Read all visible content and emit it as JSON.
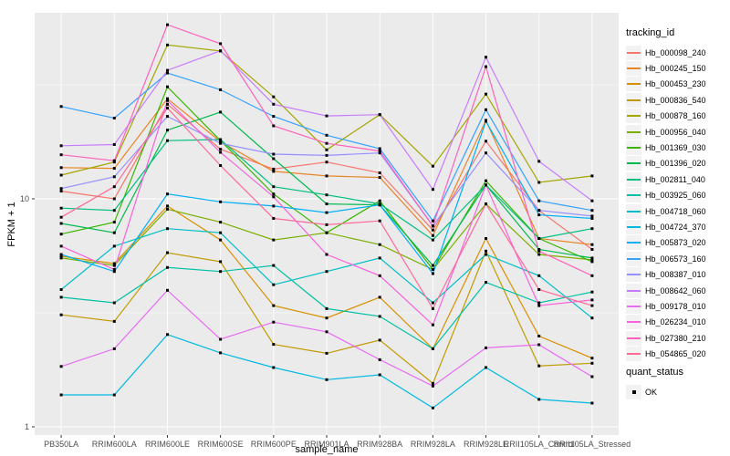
{
  "figure": {
    "xlabel": "sample_name",
    "ylabel": "FPKM + 1",
    "legend_title": "tracking_id",
    "quant_title": "quant_status",
    "quant_ok_label": "OK"
  },
  "chart_data": {
    "type": "line",
    "title": "",
    "xlabel": "sample_name",
    "ylabel": "FPKM + 1",
    "y_scale": "log10",
    "y_ticks": [
      1,
      10
    ],
    "y_tick_labels": [
      "1",
      "10"
    ],
    "y_minor_ticks": [
      3.162,
      31.62
    ],
    "ylim": [
      0.92,
      65
    ],
    "grid": true,
    "legend_position": "right",
    "legend_title": "tracking_id",
    "quant_status_legend": {
      "title": "quant_status",
      "items": [
        {
          "label": "OK",
          "marker": "black-square"
        }
      ]
    },
    "marker": {
      "shape": "square",
      "color": "#000000",
      "size": 3
    },
    "colors": {
      "panel_bg": "#EBEBEB",
      "grid": "#FFFFFF",
      "axis_text": "#4D4D4D",
      "text": "#000000",
      "legend_key_bg": "#F2F2F2"
    },
    "categories": [
      "PB350LA",
      "RRIM600LA",
      "RRIM600LE",
      "RRIM600SE",
      "RRIM600PE",
      "RRIM901LA",
      "RRIM928BA",
      "RRIM928LA",
      "RRIM928LE",
      "RRII105LA_Control",
      "RRII105LA_Stressed"
    ],
    "series": [
      {
        "name": "Hb_000098_240",
        "color": "#F8766D",
        "values": [
          10.8,
          10.0,
          26.0,
          16.5,
          13.5,
          14.5,
          13.0,
          7.3,
          17.9,
          8.9,
          6.0
        ]
      },
      {
        "name": "Hb_000245_150",
        "color": "#E88526",
        "values": [
          13.7,
          13.6,
          27.5,
          17.8,
          13.2,
          12.6,
          12.4,
          6.9,
          22.1,
          6.7,
          6.3
        ]
      },
      {
        "name": "Hb_000453_230",
        "color": "#D89000",
        "values": [
          5.6,
          5.2,
          9.3,
          6.6,
          3.4,
          3.0,
          3.7,
          2.2,
          6.7,
          2.5,
          2.0
        ]
      },
      {
        "name": "Hb_000836_540",
        "color": "#C09B00",
        "values": [
          3.1,
          2.9,
          5.8,
          5.3,
          2.3,
          2.1,
          2.4,
          1.55,
          5.9,
          1.85,
          1.9
        ]
      },
      {
        "name": "Hb_000878_160",
        "color": "#A3A500",
        "values": [
          12.7,
          14.5,
          47.3,
          44.5,
          28.0,
          16.4,
          23.4,
          13.9,
          28.8,
          11.8,
          12.6
        ]
      },
      {
        "name": "Hb_000956_040",
        "color": "#7CAE00",
        "values": [
          5.5,
          5.1,
          9.0,
          7.9,
          6.6,
          7.1,
          6.3,
          4.9,
          9.5,
          5.7,
          5.4
        ]
      },
      {
        "name": "Hb_001369_030",
        "color": "#39B600",
        "values": [
          7.0,
          7.9,
          31.0,
          18.0,
          10.5,
          7.1,
          9.8,
          4.9,
          12.0,
          6.7,
          5.3
        ]
      },
      {
        "name": "Hb_001396_020",
        "color": "#00BB4E",
        "values": [
          7.8,
          7.1,
          20.0,
          24.0,
          15.0,
          9.5,
          9.4,
          5.1,
          11.5,
          6.0,
          5.5
        ]
      },
      {
        "name": "Hb_002811_040",
        "color": "#00BF7D",
        "values": [
          9.1,
          8.9,
          18.0,
          18.2,
          11.3,
          10.4,
          9.5,
          6.6,
          11.5,
          6.7,
          7.4
        ]
      },
      {
        "name": "Hb_003925_060",
        "color": "#00C1A3",
        "values": [
          3.7,
          3.5,
          5.0,
          4.8,
          5.1,
          3.3,
          3.05,
          2.2,
          4.3,
          3.5,
          3.9
        ]
      },
      {
        "name": "Hb_004718_060",
        "color": "#00BFC4",
        "values": [
          4.0,
          6.2,
          7.4,
          7.1,
          4.2,
          4.8,
          5.5,
          3.5,
          5.7,
          4.6,
          3.0
        ]
      },
      {
        "name": "Hb_004724_370",
        "color": "#00BAE0",
        "values": [
          1.38,
          1.38,
          2.54,
          2.11,
          1.82,
          1.61,
          1.69,
          1.21,
          1.82,
          1.32,
          1.27
        ]
      },
      {
        "name": "Hb_005873_020",
        "color": "#00B0F6",
        "values": [
          5.7,
          4.8,
          10.5,
          9.7,
          9.3,
          8.7,
          9.4,
          4.7,
          21.9,
          8.5,
          8.2
        ]
      },
      {
        "name": "Hb_006573_160",
        "color": "#35A2FF",
        "values": [
          25.4,
          22.6,
          35.6,
          30.1,
          23.0,
          19.0,
          16.6,
          8.0,
          24.6,
          9.8,
          8.9
        ]
      },
      {
        "name": "Hb_008387_010",
        "color": "#9590FF",
        "values": [
          11.1,
          12.5,
          23.0,
          17.5,
          15.7,
          15.5,
          15.9,
          7.6,
          15.9,
          8.9,
          8.4
        ]
      },
      {
        "name": "Hb_008642_060",
        "color": "#C77CFF",
        "values": [
          17.1,
          17.3,
          36.6,
          44.6,
          26.0,
          23.1,
          23.4,
          11.0,
          41.8,
          14.6,
          9.8
        ]
      },
      {
        "name": "Hb_009178_010",
        "color": "#E76BF3",
        "values": [
          1.84,
          2.2,
          3.97,
          2.42,
          2.88,
          2.61,
          1.97,
          1.51,
          2.22,
          2.29,
          1.66
        ]
      },
      {
        "name": "Hb_026234_010",
        "color": "#FA62DB",
        "values": [
          6.2,
          4.9,
          27.0,
          16.0,
          10.2,
          5.7,
          4.6,
          2.8,
          11.5,
          3.4,
          3.6
        ]
      },
      {
        "name": "Hb_027380_210",
        "color": "#FF62BC",
        "values": [
          15.6,
          14.7,
          58.0,
          47.9,
          20.9,
          17.5,
          16.2,
          7.6,
          38.0,
          5.9,
          4.6
        ]
      },
      {
        "name": "Hb_054865_020",
        "color": "#FF6A98",
        "values": [
          8.3,
          11.3,
          25.0,
          14.0,
          8.2,
          7.7,
          8.0,
          3.3,
          9.5,
          4.0,
          3.4
        ]
      }
    ]
  }
}
